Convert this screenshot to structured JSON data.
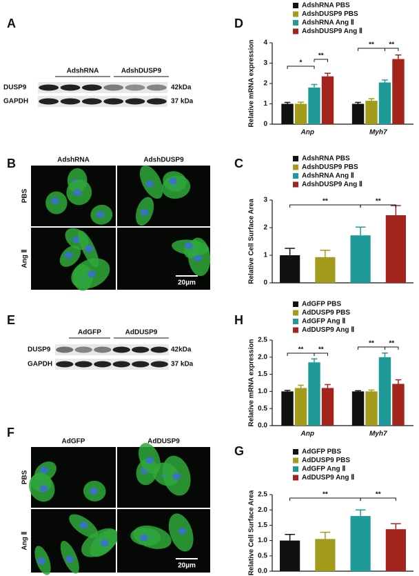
{
  "panel_labels": [
    "A",
    "D",
    "B",
    "C",
    "E",
    "H",
    "F",
    "G"
  ],
  "blots": [
    {
      "groups": [
        "AdshRNA",
        "AdshDUSP9"
      ],
      "rows": [
        {
          "name": "DUSP9",
          "size": "42kDa"
        },
        {
          "name": "GAPDH",
          "size": "37 kDa"
        }
      ]
    },
    {
      "groups": [
        "AdGFP",
        "AdDUSP9"
      ],
      "rows": [
        {
          "name": "DUSP9",
          "size": "42kDa"
        },
        {
          "name": "GAPDH",
          "size": "37 kDa"
        }
      ]
    }
  ],
  "images": [
    {
      "columns": [
        "AdshRNA",
        "AdshDUSP9"
      ],
      "rows": [
        "PBS",
        "Ang Ⅱ"
      ],
      "scale_bar": "20µm"
    },
    {
      "columns": [
        "AdGFP",
        "AdDUSP9"
      ],
      "rows": [
        "PBS",
        "Ang Ⅱ"
      ],
      "scale_bar": "20µm"
    }
  ],
  "chart_data": [
    {
      "type": "bar",
      "ylabel": "Relative mRNA expression",
      "categories": [
        "Anp",
        "Myh7"
      ],
      "series": [
        {
          "name": "AdshRNA PBS",
          "color": "#111111",
          "values": [
            1.0,
            1.0
          ],
          "errors": [
            0.07,
            0.07
          ]
        },
        {
          "name": "AdshDUSP9 PBS",
          "color": "#a39b1b",
          "values": [
            1.0,
            1.15
          ],
          "errors": [
            0.08,
            0.1
          ]
        },
        {
          "name": "AdshRNA Ang Ⅱ",
          "color": "#1e9b98",
          "values": [
            1.8,
            2.05
          ],
          "errors": [
            0.15,
            0.12
          ]
        },
        {
          "name": "AdshDUSP9 Ang Ⅱ",
          "color": "#a3231d",
          "values": [
            2.35,
            3.2
          ],
          "errors": [
            0.15,
            0.2
          ]
        }
      ],
      "ylim": [
        0,
        4
      ],
      "yticks": [
        0,
        1,
        2,
        3,
        4
      ],
      "annotations": [
        "*",
        "**",
        "**",
        "**"
      ]
    },
    {
      "type": "bar",
      "ylabel": "Relative Cell Surface Area",
      "series": [
        {
          "name": "AdshRNA PBS",
          "color": "#111111",
          "values": [
            1.0
          ],
          "errors": [
            0.25
          ]
        },
        {
          "name": "AdshDUSP9 PBS",
          "color": "#a39b1b",
          "values": [
            0.93
          ],
          "errors": [
            0.25
          ]
        },
        {
          "name": "AdshRNA Ang Ⅱ",
          "color": "#1e9b98",
          "values": [
            1.72
          ],
          "errors": [
            0.3
          ]
        },
        {
          "name": "AdshDUSP9 Ang Ⅱ",
          "color": "#a3231d",
          "values": [
            2.45
          ],
          "errors": [
            0.35
          ]
        }
      ],
      "ylim": [
        0,
        3
      ],
      "yticks": [
        0,
        1,
        2,
        3
      ],
      "annotations": [
        "**",
        "**"
      ]
    },
    {
      "type": "bar",
      "ylabel": "Relative mRNA expression",
      "categories": [
        "Anp",
        "Myh7"
      ],
      "series": [
        {
          "name": "AdGFP PBS",
          "color": "#111111",
          "values": [
            1.0,
            1.0
          ],
          "errors": [
            0.03,
            0.02
          ]
        },
        {
          "name": "AdDUSP9 PBS",
          "color": "#a39b1b",
          "values": [
            1.1,
            1.0
          ],
          "errors": [
            0.08,
            0.04
          ]
        },
        {
          "name": "AdGFP Ang Ⅱ",
          "color": "#1e9b98",
          "values": [
            1.85,
            2.0
          ],
          "errors": [
            0.1,
            0.12
          ]
        },
        {
          "name": "AdDUSP9 Ang Ⅱ",
          "color": "#a3231d",
          "values": [
            1.1,
            1.22
          ],
          "errors": [
            0.1,
            0.12
          ]
        }
      ],
      "ylim": [
        0,
        2.5
      ],
      "yticks": [
        {
          "value": 0,
          "label": "0.0"
        },
        {
          "value": 0.5,
          "label": "0.5"
        },
        {
          "value": 1,
          "label": "1.0"
        },
        {
          "value": 1.5,
          "label": "1.5"
        },
        {
          "value": 2,
          "label": "2.0"
        },
        {
          "value": 2.5,
          "label": "2.5"
        }
      ],
      "annotations": [
        "**",
        "**",
        "**",
        "**"
      ]
    },
    {
      "type": "bar",
      "ylabel": "Relative Cell Surface Area",
      "series": [
        {
          "name": "AdGFP PBS",
          "color": "#111111",
          "values": [
            1.0
          ],
          "errors": [
            0.2
          ]
        },
        {
          "name": "AdDUSP9 PBS",
          "color": "#a39b1b",
          "values": [
            1.05
          ],
          "errors": [
            0.22
          ]
        },
        {
          "name": "AdGFP Ang Ⅱ",
          "color": "#1e9b98",
          "values": [
            1.8
          ],
          "errors": [
            0.2
          ]
        },
        {
          "name": "AdDUSP9 Ang Ⅱ",
          "color": "#a3231d",
          "values": [
            1.37
          ],
          "errors": [
            0.18
          ]
        }
      ],
      "ylim": [
        0,
        2.5
      ],
      "yticks": [
        {
          "value": 0,
          "label": "0.0"
        },
        {
          "value": 0.5,
          "label": "0.5"
        },
        {
          "value": 1,
          "label": "1.0"
        },
        {
          "value": 1.5,
          "label": "1.5"
        },
        {
          "value": 2,
          "label": "2.0"
        },
        {
          "value": 2.5,
          "label": "2.5"
        }
      ],
      "annotations": [
        "**",
        "**"
      ]
    }
  ]
}
